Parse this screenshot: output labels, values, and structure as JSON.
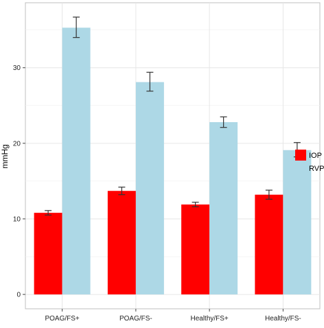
{
  "chart_data": {
    "type": "bar",
    "title": "",
    "xlabel": "",
    "ylabel": "mmHg",
    "ylim": [
      -1.9,
      38.6
    ],
    "yticks": [
      0,
      10,
      20,
      30
    ],
    "grid": true,
    "legend_position": "right",
    "categories": [
      "POAG/FS+",
      "POAG/FS-",
      "Healthy/FS+",
      "Healthy/FS-"
    ],
    "series": [
      {
        "name": "IOP",
        "color": "#FF0000",
        "values": [
          10.8,
          13.7,
          11.9,
          13.2
        ],
        "error_low": [
          10.5,
          13.2,
          11.6,
          12.6
        ],
        "error_high": [
          11.1,
          14.2,
          12.2,
          13.8
        ]
      },
      {
        "name": "RVP",
        "color": "#ADD8E6",
        "values": [
          35.3,
          28.1,
          22.8,
          19.1
        ],
        "error_low": [
          34.0,
          26.9,
          22.1,
          18.2
        ],
        "error_high": [
          36.7,
          29.4,
          23.5,
          20.1
        ]
      }
    ]
  }
}
